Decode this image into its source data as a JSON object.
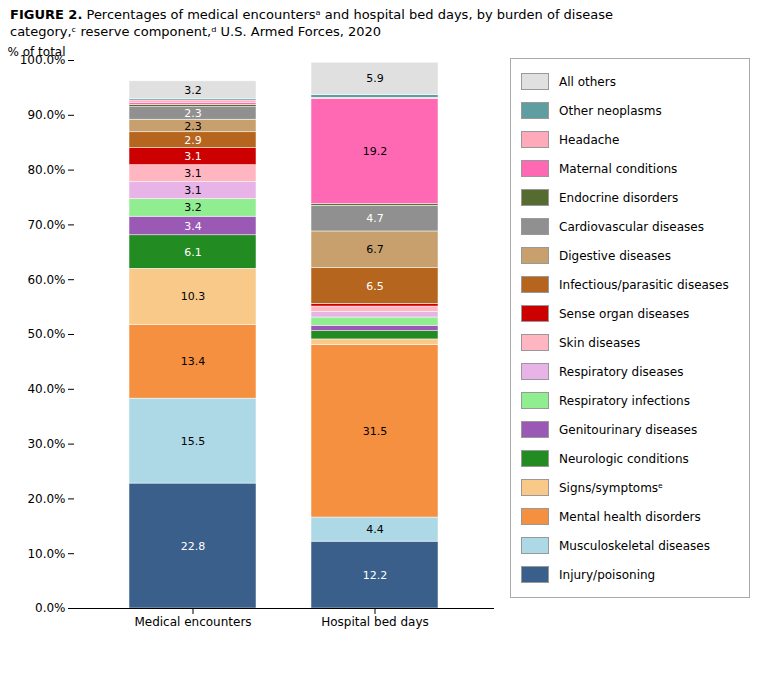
{
  "chart_data": {
    "type": "bar",
    "stacked": true,
    "title": "FIGURE 2.",
    "subtitle": "Percentages of medical encountersᵃ and hospital bed days, by burden of disease\ncategory,ᶜ reserve component,ᵈ U.S. Armed Forces, 2020",
    "categories": [
      "Medical encounters",
      "Hospital bed days"
    ],
    "ylabel": "% of total",
    "series": [
      {
        "name": "Injury/poisoning",
        "color": "#3a5f8a",
        "values": [
          22.8,
          12.2
        ],
        "value_labels": [
          "22.8",
          "12.2"
        ]
      },
      {
        "name": "Musculoskeletal diseases",
        "color": "#add8e6",
        "values": [
          15.5,
          4.4
        ],
        "value_labels": [
          "15.5",
          "4.4"
        ]
      },
      {
        "name": "Mental health disorders",
        "color": "#f59040",
        "values": [
          13.4,
          31.5
        ],
        "value_labels": [
          "13.4",
          "31.5"
        ]
      },
      {
        "name": "Signs/symptomsᵉ",
        "color": "#f9c98a",
        "values": [
          10.3,
          1.0
        ],
        "value_labels": [
          "10.3",
          null
        ]
      },
      {
        "name": "Neurologic conditions",
        "color": "#228b22",
        "values": [
          6.1,
          1.5
        ],
        "value_labels": [
          "6.1",
          null
        ]
      },
      {
        "name": "Genitourinary diseases",
        "color": "#9b59b6",
        "values": [
          3.4,
          1.0
        ],
        "value_labels": [
          "3.4",
          null
        ]
      },
      {
        "name": "Respiratory infections",
        "color": "#90ee90",
        "values": [
          3.2,
          1.5
        ],
        "value_labels": [
          "3.2",
          null
        ]
      },
      {
        "name": "Respiratory diseases",
        "color": "#e8b4e8",
        "values": [
          3.1,
          1.0
        ],
        "value_labels": [
          "3.1",
          null
        ]
      },
      {
        "name": "Skin diseases",
        "color": "#ffb6c1",
        "values": [
          3.1,
          1.0
        ],
        "value_labels": [
          "3.1",
          null
        ]
      },
      {
        "name": "Sense organ diseases",
        "color": "#cc0000",
        "values": [
          3.1,
          0.5
        ],
        "value_labels": [
          "3.1",
          null
        ]
      },
      {
        "name": "Infectious/parasitic diseases",
        "color": "#b5651d",
        "values": [
          2.9,
          6.5
        ],
        "value_labels": [
          "2.9",
          "6.5"
        ]
      },
      {
        "name": "Digestive diseases",
        "color": "#c8a06e",
        "values": [
          2.3,
          6.7
        ],
        "value_labels": [
          "2.3",
          "6.7"
        ]
      },
      {
        "name": "Cardiovascular diseases",
        "color": "#909090",
        "values": [
          2.3,
          4.7
        ],
        "value_labels": [
          "2.3",
          "4.7"
        ]
      },
      {
        "name": "Endocrine disorders",
        "color": "#556b2f",
        "values": [
          0.4,
          0.3
        ],
        "value_labels": [
          null,
          null
        ]
      },
      {
        "name": "Maternal conditions",
        "color": "#ff69b4",
        "values": [
          0.4,
          19.2
        ],
        "value_labels": [
          null,
          "19.2"
        ]
      },
      {
        "name": "Headache",
        "color": "#ffaabb",
        "values": [
          0.4,
          0.2
        ],
        "value_labels": [
          null,
          null
        ]
      },
      {
        "name": "Other neoplasms",
        "color": "#5f9ea0",
        "values": [
          0.3,
          0.5
        ],
        "value_labels": [
          null,
          null
        ]
      },
      {
        "name": "All others",
        "color": "#e0e0e0",
        "values": [
          3.2,
          5.9
        ],
        "value_labels": [
          "3.2",
          "5.9"
        ]
      }
    ],
    "ylim": [
      0,
      100
    ],
    "yticks": [
      {
        "value": 0,
        "label": "0.0%"
      },
      {
        "value": 10,
        "label": "10.0%"
      },
      {
        "value": 20,
        "label": "20.0%"
      },
      {
        "value": 30,
        "label": "30.0%"
      },
      {
        "value": 40,
        "label": "40.0%"
      },
      {
        "value": 50,
        "label": "50.0%"
      },
      {
        "value": 60,
        "label": "60.0%"
      },
      {
        "value": 70,
        "label": "70.0%"
      },
      {
        "value": 80,
        "label": "80.0%"
      },
      {
        "value": 90,
        "label": "90.0%"
      },
      {
        "value": 100,
        "label": "100.0%"
      }
    ],
    "grid": false,
    "legend": "right",
    "data_labels": true
  }
}
